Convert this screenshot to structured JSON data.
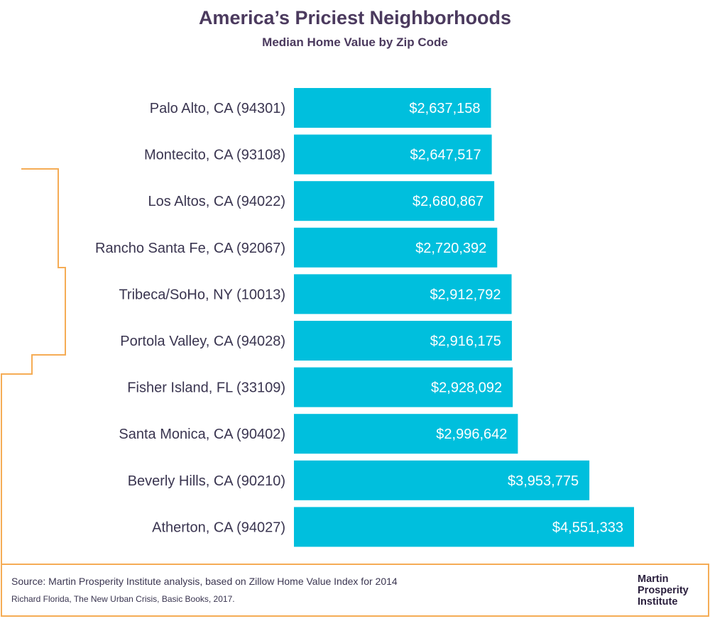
{
  "chart_data": {
    "type": "bar",
    "orientation": "horizontal",
    "title": "America’s Priciest Neighborhoods",
    "subtitle": "Median Home Value by Zip Code",
    "categories": [
      "Palo Alto, CA (94301)",
      "Montecito, CA (93108)",
      "Los Altos, CA (94022)",
      "Rancho Santa Fe, CA (92067)",
      "Tribeca/SoHo, NY (10013)",
      "Portola Valley, CA (94028)",
      "Fisher Island, FL (33109)",
      "Santa Monica, CA (90402)",
      "Beverly Hills, CA (90210)",
      "Atherton, CA (94027)"
    ],
    "values": [
      2637158,
      2647517,
      2680867,
      2720392,
      2912792,
      2916175,
      2928092,
      2996642,
      3953775,
      4551333
    ],
    "value_labels": [
      "$2,637,158",
      "$2,647,517",
      "$2,680,867",
      "$2,720,392",
      "$2,912,792",
      "$2,916,175",
      "$2,928,092",
      "$2,996,642",
      "$3,953,775",
      "$4,551,333"
    ],
    "xlim": [
      0,
      4551333
    ],
    "grid": false,
    "bar_color": "#00bfdd",
    "outline_color": "#f5ac55"
  },
  "footer": {
    "source": "Source: Martin Prosperity Institute analysis, based on Zillow Home Value Index for 2014",
    "citation": "Richard Florida, The New Urban Crisis, Basic Books, 2017.",
    "logo": [
      "Martin",
      "Prosperity",
      "Institute"
    ]
  }
}
